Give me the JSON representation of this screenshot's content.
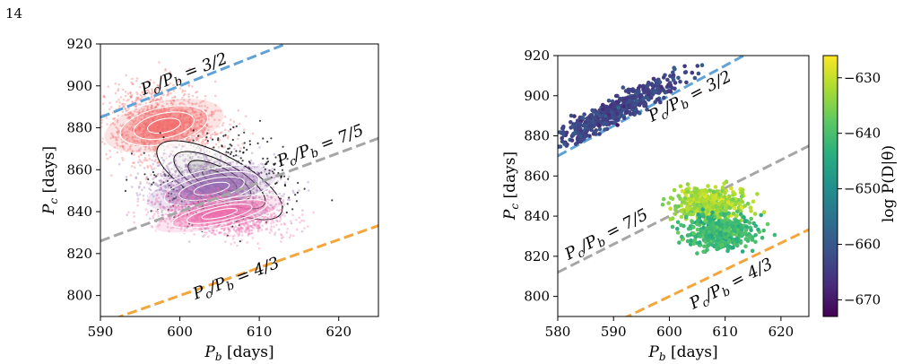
{
  "page_number": "14",
  "colors": {
    "blue_dashed": "#5fa2d8",
    "gray_dashed": "#a6a6a6",
    "orange_dashed": "#f3a63c",
    "cloud_red": "#f26a6a",
    "cloud_purple": "#9b6cb5",
    "cloud_pink": "#ee6fae",
    "cloud_black": "#000000"
  },
  "chart_data": [
    {
      "type": "scatter",
      "title": "",
      "xlabel": "P_b [days]",
      "ylabel": "P_c [days]",
      "xlim": [
        590,
        625
      ],
      "ylim": [
        790,
        920
      ],
      "xticks": [
        590,
        600,
        610,
        620
      ],
      "yticks": [
        800,
        820,
        840,
        860,
        880,
        900,
        920
      ],
      "grid": false,
      "resonance_lines": [
        {
          "label": "P_c/P_b = 3/2",
          "ratio": 1.5,
          "color": "#5fa2d8"
        },
        {
          "label": "P_c/P_b = 7/5",
          "ratio": 1.4,
          "color": "#a6a6a6"
        },
        {
          "label": "P_c/P_b = 4/3",
          "ratio": 1.3333,
          "color": "#f3a63c"
        }
      ],
      "series": [
        {
          "color": "#f26a6a",
          "center": [
            598,
            881
          ],
          "spread": [
            3.5,
            9
          ],
          "style": "points+filled-contours"
        },
        {
          "color": "#000000",
          "center": [
            605,
            855
          ],
          "spread": [
            4,
            9
          ],
          "style": "points+line-contours"
        },
        {
          "color": "#9b6cb5",
          "center": [
            604,
            851
          ],
          "spread": [
            3.8,
            7
          ],
          "style": "points+filled-contours"
        },
        {
          "color": "#ee6fae",
          "center": [
            605,
            839
          ],
          "spread": [
            3.8,
            5
          ],
          "style": "points+filled-contours"
        }
      ]
    },
    {
      "type": "scatter",
      "title": "",
      "xlabel": "P_b [days]",
      "ylabel": "P_c [days]",
      "xlim": [
        580,
        625
      ],
      "ylim": [
        790,
        920
      ],
      "xticks": [
        580,
        590,
        600,
        610,
        620
      ],
      "yticks": [
        800,
        820,
        840,
        860,
        880,
        900,
        920
      ],
      "grid": false,
      "resonance_lines": [
        {
          "label": "P_c/P_b = 3/2",
          "ratio": 1.5,
          "color": "#5fa2d8"
        },
        {
          "label": "P_c/P_b = 7/5",
          "ratio": 1.4,
          "color": "#a6a6a6"
        },
        {
          "label": "P_c/P_b = 4/3",
          "ratio": 1.3333,
          "color": "#f3a63c"
        }
      ],
      "colorbar": {
        "label": "log P(D|θ)",
        "ticks": [
          -630,
          -640,
          -650,
          -660,
          -670
        ],
        "range": [
          -673,
          -626
        ],
        "colormap": "viridis"
      },
      "series": [
        {
          "center": [
            590,
            892
          ],
          "spread": [
            4,
            4
          ],
          "log_prob": -663,
          "orientation": "along-3/2"
        },
        {
          "center": [
            607,
            846
          ],
          "spread": [
            3,
            4
          ],
          "log_prob": -632
        },
        {
          "center": [
            609,
            832
          ],
          "spread": [
            3,
            4
          ],
          "log_prob": -641
        }
      ]
    }
  ]
}
